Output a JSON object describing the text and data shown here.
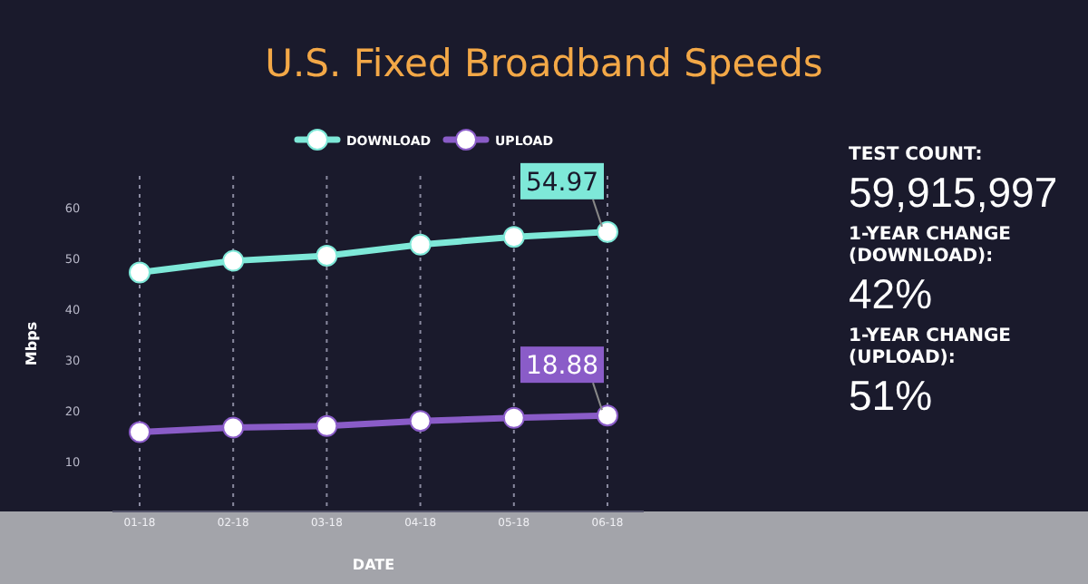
{
  "chart_data": {
    "type": "line",
    "title": "U.S. Fixed Broadband Speeds",
    "xlabel": "DATE",
    "ylabel": "Mbps",
    "categories": [
      "01-18",
      "02-18",
      "03-18",
      "04-18",
      "05-18",
      "06-18"
    ],
    "series": [
      {
        "name": "DOWNLOAD",
        "color": "#7ee8d8",
        "values": [
          47,
          49.3,
          50.3,
          52.5,
          54,
          54.97
        ],
        "value_labels": [
          null,
          null,
          null,
          null,
          null,
          "54.97"
        ]
      },
      {
        "name": "UPLOAD",
        "color": "#8a5cc8",
        "values": [
          15.6,
          16.5,
          16.8,
          17.8,
          18.4,
          18.88
        ],
        "value_labels": [
          null,
          null,
          null,
          null,
          null,
          "18.88"
        ]
      }
    ],
    "ylim": [
      0,
      66
    ],
    "yticks": [
      10,
      20,
      30,
      40,
      50,
      60
    ],
    "grid": "x",
    "legend": "top right",
    "marker": "circle",
    "line_style": "solid",
    "annotations": [
      "TEST COUNT:",
      "59,915,997",
      "1-YEAR CHANGE (DOWNLOAD):",
      "42%",
      "1-YEAR CHANGE (UPLOAD):",
      "51%"
    ]
  }
}
